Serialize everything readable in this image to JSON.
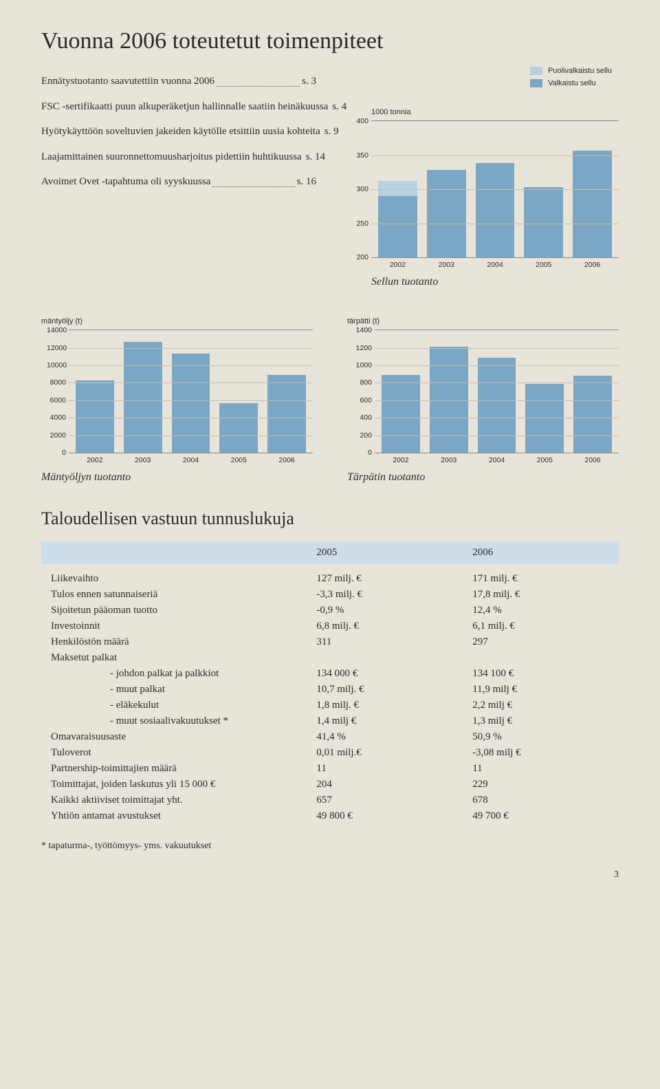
{
  "title": "Vuonna 2006 toteutetut toimenpiteet",
  "toc": [
    {
      "label": "Ennätystuotanto saavutettiin vuonna 2006",
      "page": "s. 3"
    },
    {
      "label": "FSC -sertifikaatti puun alkuperäketjun hallinnalle saatiin heinäkuussa",
      "page": "s. 4"
    },
    {
      "label": "Hyötykäyttöön soveltuvien jakeiden käytölle etsittiin uusia kohteita",
      "page": "s. 9"
    },
    {
      "label": "Laajamittainen suuronnettomuusharjoitus pidettiin huhtikuussa",
      "page": "s. 14"
    },
    {
      "label": "Avoimet Ovet -tapahtuma oli syyskuussa",
      "page": "s. 16"
    }
  ],
  "sellu": {
    "axis_label": "1000 tonnia",
    "legend": [
      {
        "label": "Puolivalkaistu sellu",
        "color": "#b8d1e0"
      },
      {
        "label": "Valkaistu sellu",
        "color": "#7ba6c4"
      }
    ],
    "ylim": [
      200,
      400
    ],
    "yticks": [
      200,
      250,
      300,
      350,
      400
    ],
    "years": [
      "2002",
      "2003",
      "2004",
      "2005",
      "2006"
    ],
    "stacks": [
      {
        "bleached": 290,
        "semi": 22
      },
      {
        "bleached": 328,
        "semi": 0
      },
      {
        "bleached": 338,
        "semi": 0
      },
      {
        "bleached": 303,
        "semi": 0
      },
      {
        "bleached": 357,
        "semi": 0
      }
    ],
    "title": "Sellun tuotanto",
    "colors": {
      "bleached": "#7ba6c4",
      "semi": "#b8d1e0",
      "grid": "#c4beb0",
      "border": "#888888"
    }
  },
  "mantyoljy": {
    "axis_label": "mäntyöljy (t)",
    "ylim": [
      0,
      14000
    ],
    "yticks": [
      0,
      2000,
      4000,
      6000,
      8000,
      10000,
      12000,
      14000
    ],
    "years": [
      "2002",
      "2003",
      "2004",
      "2005",
      "2006"
    ],
    "values": [
      8300,
      12700,
      11300,
      5700,
      8900
    ],
    "title": "Mäntyöljyn tuotanto",
    "bar_color": "#7ba6c4"
  },
  "tarpatti": {
    "axis_label": "tärpätti (t)",
    "ylim": [
      0,
      1400
    ],
    "yticks": [
      0,
      200,
      400,
      600,
      800,
      1000,
      1200,
      1400
    ],
    "years": [
      "2002",
      "2003",
      "2004",
      "2005",
      "2006"
    ],
    "values": [
      890,
      1210,
      1090,
      790,
      880
    ],
    "title": "Tärpätin tuotanto",
    "bar_color": "#7ba6c4"
  },
  "kpi_heading": "Taloudellisen vastuun tunnuslukuja",
  "kpi": {
    "years": [
      "2005",
      "2006"
    ],
    "header_bg": "#cfdce9",
    "rows": [
      {
        "label": "Liikevaihto",
        "v05": "127 milj. €",
        "v06": "171 milj. €"
      },
      {
        "label": "Tulos ennen satunnaiseriä",
        "v05": "-3,3 milj. €",
        "v06": "17,8 milj. €"
      },
      {
        "label": "Sijoitetun pääoman tuotto",
        "v05": "-0,9 %",
        "v06": "12,4 %"
      },
      {
        "label": "Investoinnit",
        "v05": "6,8 milj. €",
        "v06": "6,1 milj. €"
      },
      {
        "label": "Henkilöstön määrä",
        "v05": "311",
        "v06": "297"
      },
      {
        "label": "Maksetut palkat",
        "v05": "",
        "v06": ""
      },
      {
        "label": "- johdon palkat ja palkkiot",
        "indent": true,
        "v05": "134 000 €",
        "v06": "134 100 €"
      },
      {
        "label": "- muut palkat",
        "indent": true,
        "v05": "10,7 milj. €",
        "v06": "11,9 milj €"
      },
      {
        "label": "- eläkekulut",
        "indent": true,
        "v05": "1,8 milj. €",
        "v06": "2,2 milj €"
      },
      {
        "label": "- muut sosiaalivakuutukset *",
        "indent": true,
        "v05": "1,4 milj €",
        "v06": "1,3 milj €"
      },
      {
        "label": "Omavaraisuusaste",
        "v05": "41,4 %",
        "v06": "50,9 %"
      },
      {
        "label": "Tuloverot",
        "v05": "0,01 milj.€",
        "v06": "-3,08 milj €"
      },
      {
        "label": "Partnership-toimittajien määrä",
        "v05": "11",
        "v06": "11"
      },
      {
        "label": "Toimittajat, joiden laskutus yli 15 000 €",
        "v05": "204",
        "v06": "229"
      },
      {
        "label": "Kaikki aktiiviset toimittajat yht.",
        "v05": "657",
        "v06": "678"
      },
      {
        "label": "Yhtiön antamat avustukset",
        "v05": "49 800 €",
        "v06": "49 700 €"
      }
    ]
  },
  "footnote": "* tapaturma-, työttömyys- yms. vakuutukset",
  "page_number": "3"
}
